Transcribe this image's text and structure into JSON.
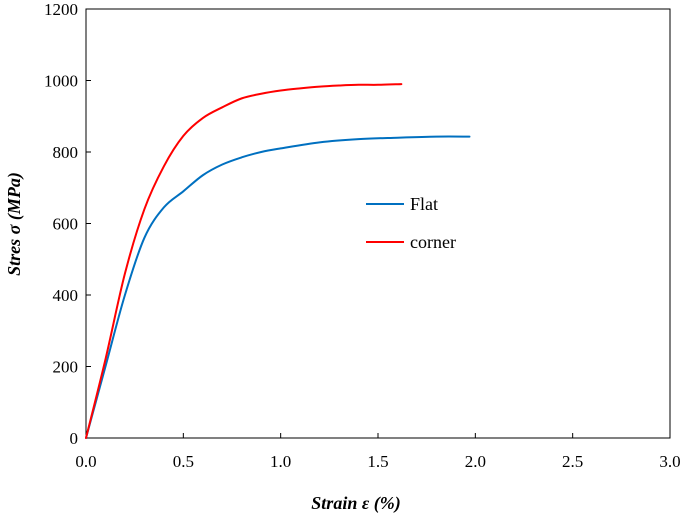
{
  "chart_data": {
    "type": "line",
    "title": "",
    "xlabel": "Strain ε (%)",
    "ylabel": "Stres σ (MPa)",
    "xlim": [
      0,
      3.0
    ],
    "ylim": [
      0,
      1200
    ],
    "x_ticks": [
      "0.0",
      "0.5",
      "1.0",
      "1.5",
      "2.0",
      "2.5",
      "3.0"
    ],
    "y_ticks": [
      "0",
      "200",
      "400",
      "600",
      "800",
      "1000",
      "1200"
    ],
    "grid": false,
    "legend_position": "center-right",
    "series": [
      {
        "name": "Flat",
        "color": "#0070C0",
        "points": [
          [
            0.0,
            0
          ],
          [
            0.1,
            200
          ],
          [
            0.2,
            400
          ],
          [
            0.3,
            560
          ],
          [
            0.4,
            645
          ],
          [
            0.5,
            690
          ],
          [
            0.6,
            735
          ],
          [
            0.7,
            765
          ],
          [
            0.8,
            785
          ],
          [
            0.9,
            800
          ],
          [
            1.0,
            810
          ],
          [
            1.2,
            827
          ],
          [
            1.4,
            836
          ],
          [
            1.6,
            840
          ],
          [
            1.8,
            843
          ],
          [
            1.97,
            843
          ]
        ]
      },
      {
        "name": "corner",
        "color": "#FF0000",
        "points": [
          [
            0.0,
            0
          ],
          [
            0.1,
            220
          ],
          [
            0.2,
            460
          ],
          [
            0.3,
            640
          ],
          [
            0.4,
            760
          ],
          [
            0.5,
            845
          ],
          [
            0.6,
            895
          ],
          [
            0.7,
            925
          ],
          [
            0.8,
            950
          ],
          [
            0.9,
            963
          ],
          [
            1.0,
            972
          ],
          [
            1.1,
            978
          ],
          [
            1.2,
            983
          ],
          [
            1.3,
            986
          ],
          [
            1.4,
            988
          ],
          [
            1.5,
            988
          ],
          [
            1.62,
            990
          ]
        ]
      }
    ]
  }
}
